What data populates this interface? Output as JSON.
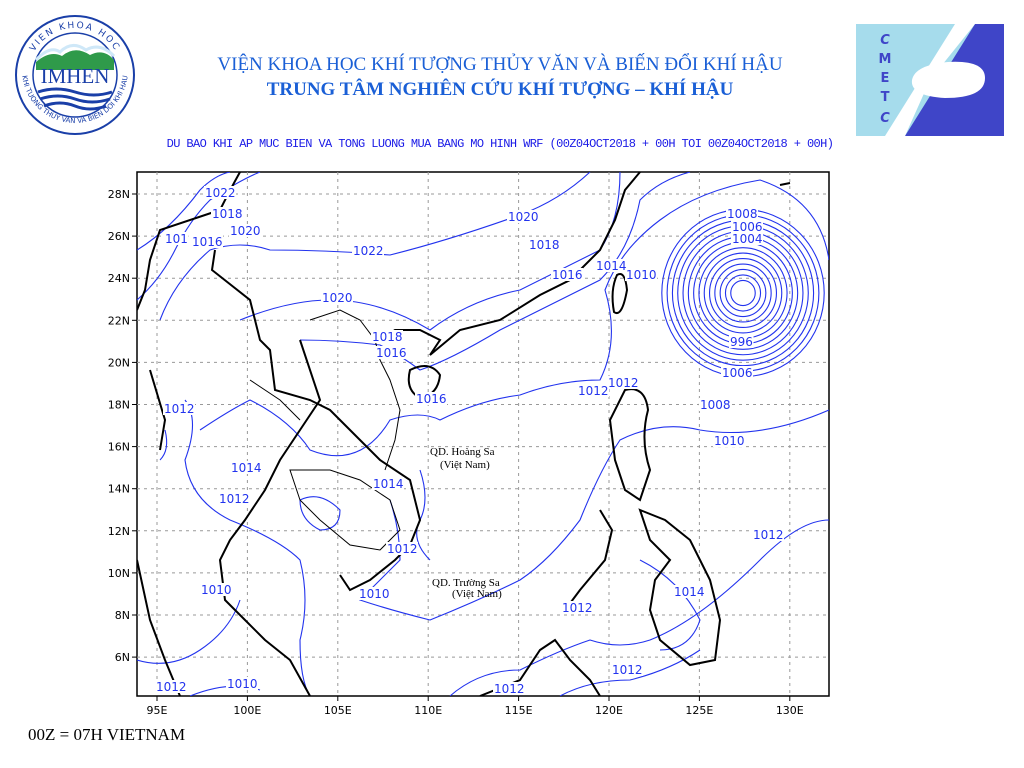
{
  "header": {
    "line1": "VIỆN KHOA HỌC KHÍ TƯỢNG THỦY VĂN VÀ BIẾN ĐỔI KHÍ HẬU",
    "line2": "TRUNG TÂM NGHIÊN CỨU KHÍ TƯỢNG – KHÍ HẬU"
  },
  "logos": {
    "left": {
      "text": "IMHEN",
      "ring_top": "VIEN KHOA HOC",
      "ring_bottom": "KHI TUONG THUY VAN VA BIEN DOI KHI HAU"
    },
    "right": {
      "letters": [
        "C",
        "M",
        "E",
        "T",
        "C"
      ]
    }
  },
  "map": {
    "title": "DU BAO KHI AP MUC BIEN VA TONG LUONG MUA BANG MO HINH WRF (00Z04OCT2018 + 00H TOI 00Z04OCT2018 + 00H)",
    "lon_ticks": [
      "95E",
      "100E",
      "105E",
      "110E",
      "115E",
      "120E",
      "125E",
      "130E"
    ],
    "lat_ticks": [
      "28N",
      "26N",
      "24N",
      "22N",
      "20N",
      "18N",
      "16N",
      "14N",
      "12N",
      "10N",
      "8N",
      "6N"
    ],
    "contour_color": "#2233ee",
    "coast_color": "#000000",
    "islands": [
      {
        "name": "QD. Hoàng Sa",
        "sub": "(Việt Nam)"
      },
      {
        "name": "QD. Trường Sa",
        "sub": "(Việt Nam)"
      }
    ],
    "isobar_labels": [
      "1022",
      "1018",
      "1020",
      "101",
      "1016",
      "1022",
      "1020",
      "1018",
      "1016",
      "1014",
      "1010",
      "1020",
      "1018",
      "1016",
      "1016",
      "1012",
      "1012",
      "1012",
      "1008",
      "1006",
      "1004",
      "996",
      "1006",
      "1008",
      "1010",
      "1014",
      "1012",
      "1014",
      "1012",
      "1012",
      "1010",
      "1010",
      "1012",
      "1014",
      "1012",
      "1012",
      "1010",
      "1012"
    ]
  },
  "footer": "00Z = 07H VIETNAM"
}
